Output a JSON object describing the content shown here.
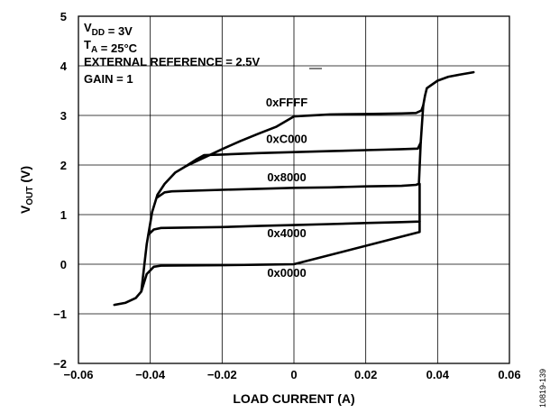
{
  "chart_data": {
    "type": "line",
    "title": "",
    "xlabel": "LOAD CURRENT (A)",
    "ylabel": {
      "main": "V",
      "sub": "OUT",
      "unit": " (V)"
    },
    "xlim": [
      -0.06,
      0.06
    ],
    "ylim": [
      -2,
      5
    ],
    "xticks": [
      "−0.06",
      "−0.04",
      "−0.02",
      "0",
      "0.02",
      "0.04",
      "0.06"
    ],
    "yticks": [
      "−2",
      "−1",
      "0",
      "1",
      "2",
      "3",
      "4",
      "5"
    ],
    "grid": true,
    "annotations": [
      {
        "parts": [
          {
            "t": "V"
          },
          {
            "t": "DD",
            "sub": true
          },
          {
            "t": " = 3V"
          }
        ]
      },
      {
        "parts": [
          {
            "t": "T"
          },
          {
            "t": "A",
            "sub": true
          },
          {
            "t": " = 25°C"
          }
        ]
      },
      {
        "parts": [
          {
            "t": "EXTERNAL REFERENCE = 2.5V"
          }
        ]
      },
      {
        "parts": [
          {
            "t": "GAIN = 1"
          }
        ]
      }
    ],
    "series": [
      {
        "name": "0xFFFF",
        "label_pos": [
          -0.002,
          3.18
        ],
        "points": [
          [
            -0.05,
            -0.82
          ],
          [
            -0.047,
            -0.78
          ],
          [
            -0.044,
            -0.68
          ],
          [
            -0.0425,
            -0.55
          ],
          [
            -0.041,
            0.4
          ],
          [
            -0.0395,
            1.05
          ],
          [
            -0.038,
            1.4
          ],
          [
            -0.036,
            1.62
          ],
          [
            -0.033,
            1.85
          ],
          [
            -0.03,
            1.98
          ],
          [
            -0.025,
            2.15
          ],
          [
            -0.02,
            2.32
          ],
          [
            -0.015,
            2.48
          ],
          [
            -0.01,
            2.63
          ],
          [
            -0.005,
            2.77
          ],
          [
            0,
            2.98
          ],
          [
            0.01,
            3.02
          ],
          [
            0.02,
            3.03
          ],
          [
            0.03,
            3.04
          ],
          [
            0.034,
            3.05
          ],
          [
            0.0355,
            3.1
          ],
          [
            0.036,
            3.2
          ],
          [
            0.0365,
            3.4
          ],
          [
            0.037,
            3.55
          ],
          [
            0.038,
            3.6
          ],
          [
            0.04,
            3.7
          ],
          [
            0.043,
            3.78
          ],
          [
            0.046,
            3.82
          ],
          [
            0.05,
            3.87
          ]
        ]
      },
      {
        "name": "0xC000",
        "label_pos": [
          -0.002,
          2.45
        ],
        "points": [
          [
            -0.03,
            1.98
          ],
          [
            -0.027,
            2.12
          ],
          [
            -0.025,
            2.2
          ],
          [
            -0.02,
            2.21
          ],
          [
            -0.01,
            2.24
          ],
          [
            0,
            2.26
          ],
          [
            0.01,
            2.28
          ],
          [
            0.02,
            2.3
          ],
          [
            0.03,
            2.32
          ],
          [
            0.0345,
            2.33
          ],
          [
            0.0353,
            2.45
          ],
          [
            0.036,
            3.2
          ]
        ]
      },
      {
        "name": "0x8000",
        "label_pos": [
          -0.002,
          1.67
        ],
        "points": [
          [
            -0.038,
            1.35
          ],
          [
            -0.036,
            1.45
          ],
          [
            -0.034,
            1.47
          ],
          [
            -0.02,
            1.5
          ],
          [
            -0.01,
            1.52
          ],
          [
            0,
            1.54
          ],
          [
            0.01,
            1.55
          ],
          [
            0.02,
            1.57
          ],
          [
            0.03,
            1.58
          ],
          [
            0.034,
            1.6
          ],
          [
            0.0348,
            1.62
          ],
          [
            0.0353,
            2.45
          ]
        ]
      },
      {
        "name": "0x4000",
        "label_pos": [
          -0.002,
          0.55
        ],
        "points": [
          [
            -0.0405,
            0.6
          ],
          [
            -0.039,
            0.7
          ],
          [
            -0.037,
            0.73
          ],
          [
            -0.02,
            0.75
          ],
          [
            -0.01,
            0.77
          ],
          [
            0,
            0.79
          ],
          [
            0.01,
            0.81
          ],
          [
            0.02,
            0.83
          ],
          [
            0.03,
            0.85
          ],
          [
            0.035,
            0.86
          ],
          [
            0.035,
            1.62
          ]
        ]
      },
      {
        "name": "0x0000",
        "label_pos": [
          -0.002,
          -0.25
        ],
        "points": [
          [
            -0.0425,
            -0.55
          ],
          [
            -0.041,
            -0.2
          ],
          [
            -0.039,
            -0.05
          ],
          [
            -0.037,
            -0.03
          ],
          [
            -0.02,
            -0.02
          ],
          [
            -0.01,
            -0.01
          ],
          [
            0,
            0
          ],
          [
            0.035,
            0.65
          ],
          [
            0.035,
            0.86
          ]
        ]
      }
    ]
  },
  "figure_id": "10819-139"
}
